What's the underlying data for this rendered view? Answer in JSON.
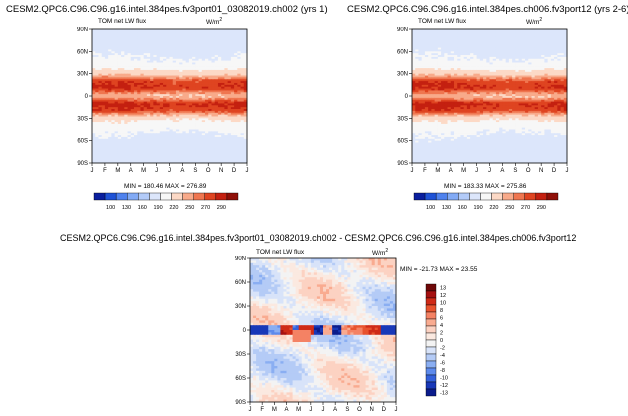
{
  "panels": [
    {
      "title": "CESM2.QPC6.C96.C96.g16.intel.384pes.fv3port01_03082019.ch002 (yrs 1)",
      "variable": "TOM net LW flux",
      "units": "W/m",
      "units_sup": "2",
      "minmax": "MIN = 180.46 MAX = 276.89"
    },
    {
      "title": "CESM2.QPC6.C96.C96.g16.intel.384pes.ch006.fv3port12 (yrs 2-6)",
      "variable": "TOM net LW flux",
      "units": "W/m",
      "units_sup": "2",
      "minmax": "MIN = 183.33 MAX = 275.86"
    },
    {
      "title": "CESM2.QPC6.C96.C96.g16.intel.384pes.fv3port01_03082019.ch002 - CESM2.QPC6.C96.C96.g16.intel.384pes.ch006.fv3port12",
      "variable": "TOM net LW flux",
      "units": "W/m",
      "units_sup": "2",
      "minmax": "MIN = -21.73 MAX =  23.55"
    }
  ],
  "colorbar_abs": {
    "labels": [
      "100",
      "130",
      "160",
      "190",
      "220",
      "250",
      "270",
      "290"
    ],
    "colors": [
      "#0a1f9e",
      "#1f52d6",
      "#4f82ee",
      "#82aaf5",
      "#b3cbf8",
      "#dce6fb",
      "#f7f7f7",
      "#fcd9c6",
      "#f8aa8a",
      "#ef7650",
      "#df4421",
      "#c42010",
      "#8f0f08"
    ]
  },
  "colorbar_diff": {
    "labels": [
      "13",
      "12",
      "10",
      "8",
      "6",
      "4",
      "2",
      "0",
      "-2",
      "-4",
      "-6",
      "-8",
      "-10",
      "-12",
      "-13"
    ],
    "colors": [
      "#6e0808",
      "#a51010",
      "#cf2a16",
      "#e8532e",
      "#f48264",
      "#f9ab90",
      "#fcd2c2",
      "#fbe9e0",
      "#f3f3f3",
      "#d8e3f9",
      "#b4cbf6",
      "#8aaef2",
      "#5d8aec",
      "#3461db",
      "#1838b8",
      "#0b1c8c"
    ]
  },
  "chart_data": [
    {
      "type": "heatmap",
      "title": "CESM2.QPC6.C96.C96.g16.intel.384pes.fv3port01_03082019.ch002 (yrs 1)",
      "variable": "TOM net LW flux",
      "units": "W/m2",
      "x_tick_labels": [
        "J",
        "F",
        "M",
        "A",
        "M",
        "J",
        "J",
        "A",
        "S",
        "O",
        "N",
        "D",
        "J"
      ],
      "y_tick_labels": [
        "90N",
        "60N",
        "30N",
        "0",
        "30S",
        "60S",
        "90S"
      ],
      "latitudes": [
        90,
        80,
        70,
        60,
        50,
        40,
        30,
        20,
        10,
        0,
        -10,
        -20,
        -30,
        -40,
        -50,
        -60,
        -70,
        -80,
        -90
      ],
      "lat_profile_wm2": [
        215,
        214,
        214,
        216,
        220,
        226,
        245,
        268,
        270,
        250,
        272,
        268,
        240,
        226,
        220,
        215,
        212,
        212,
        212
      ],
      "min": 180.46,
      "max": 276.89,
      "colorbar_levels": [
        100,
        130,
        160,
        190,
        220,
        250,
        270,
        290
      ]
    },
    {
      "type": "heatmap",
      "title": "CESM2.QPC6.C96.C96.g16.intel.384pes.ch006.fv3port12 (yrs 2-6)",
      "variable": "TOM net LW flux",
      "units": "W/m2",
      "x_tick_labels": [
        "J",
        "F",
        "M",
        "A",
        "M",
        "J",
        "J",
        "A",
        "S",
        "O",
        "N",
        "D",
        "J"
      ],
      "y_tick_labels": [
        "90N",
        "60N",
        "30N",
        "0",
        "30S",
        "60S",
        "90S"
      ],
      "latitudes": [
        90,
        80,
        70,
        60,
        50,
        40,
        30,
        20,
        10,
        0,
        -10,
        -20,
        -30,
        -40,
        -50,
        -60,
        -70,
        -80,
        -90
      ],
      "lat_profile_wm2": [
        214,
        214,
        214,
        216,
        220,
        226,
        245,
        268,
        270,
        250,
        272,
        268,
        240,
        226,
        220,
        216,
        213,
        213,
        213
      ],
      "min": 183.33,
      "max": 275.86,
      "colorbar_levels": [
        100,
        130,
        160,
        190,
        220,
        250,
        270,
        290
      ]
    },
    {
      "type": "heatmap",
      "title": "CESM2.QPC6.C96.C96.g16.intel.384pes.fv3port01_03082019.ch002 - CESM2.QPC6.C96.C96.g16.intel.384pes.ch006.fv3port12",
      "variable": "TOM net LW flux",
      "units": "W/m2",
      "x_tick_labels": [
        "J",
        "F",
        "M",
        "A",
        "M",
        "J",
        "J",
        "A",
        "S",
        "O",
        "N",
        "D",
        "J"
      ],
      "y_tick_labels": [
        "90N",
        "60N",
        "30N",
        "0",
        "30S",
        "60S",
        "90S"
      ],
      "min": -21.73,
      "max": 23.55,
      "colorbar_levels": [
        13,
        12,
        10,
        8,
        6,
        4,
        2,
        0,
        -2,
        -4,
        -6,
        -8,
        -10,
        -12,
        -13
      ]
    }
  ]
}
